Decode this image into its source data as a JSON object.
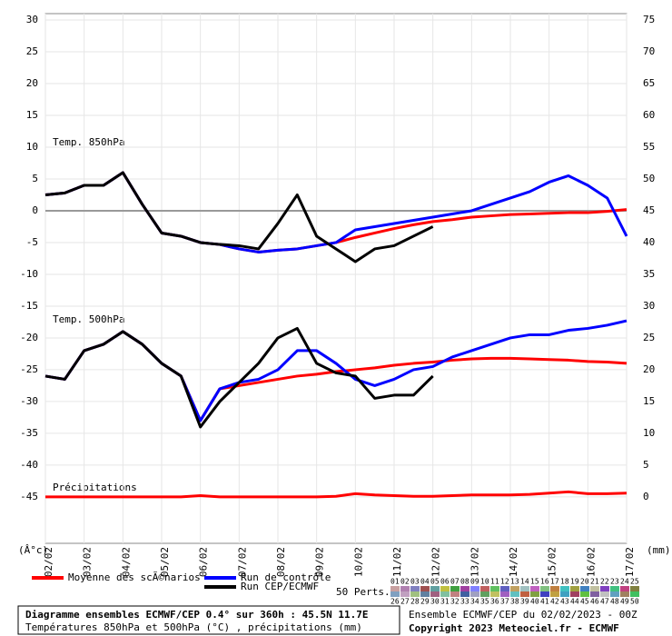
{
  "chart_data": {
    "type": "line",
    "labels": {
      "t850": "Temp. 850hPa",
      "t500": "Temp. 500hPa",
      "precip": "Précipitations",
      "y_unit": "(Â°c)",
      "y2_unit": "(mm)",
      "perts": "50 Perts."
    },
    "x": [
      0,
      12,
      24,
      36,
      48,
      60,
      72,
      84,
      96,
      108,
      120,
      132,
      144,
      156,
      168,
      180,
      192,
      204,
      216,
      228,
      240,
      252,
      264,
      276,
      288,
      300,
      312,
      324,
      336,
      348,
      360
    ],
    "xlim": [
      0,
      360
    ],
    "xticks": [
      {
        "value": 0,
        "label": "02/02"
      },
      {
        "value": 24,
        "label": "03/02"
      },
      {
        "value": 48,
        "label": "04/02"
      },
      {
        "value": 72,
        "label": "05/02"
      },
      {
        "value": 96,
        "label": "06/02"
      },
      {
        "value": 120,
        "label": "07/02"
      },
      {
        "value": 144,
        "label": "08/02"
      },
      {
        "value": 168,
        "label": "09/02"
      },
      {
        "value": 192,
        "label": "10/02"
      },
      {
        "value": 216,
        "label": "11/02"
      },
      {
        "value": 240,
        "label": "12/02"
      },
      {
        "value": 264,
        "label": "13/02"
      },
      {
        "value": 288,
        "label": "14/02"
      },
      {
        "value": 312,
        "label": "15/02"
      },
      {
        "value": 336,
        "label": "16/02"
      },
      {
        "value": 360,
        "label": "17/02"
      }
    ],
    "ylim": [
      -52.3,
      31
    ],
    "yticks": [
      30,
      25,
      20,
      15,
      10,
      5,
      0,
      -5,
      -10,
      -15,
      -20,
      -25,
      -30,
      -35,
      -40,
      -45
    ],
    "y2lim": [
      -7.3,
      76
    ],
    "y2ticks": [
      75,
      70,
      65,
      60,
      55,
      50,
      45,
      40,
      35,
      30,
      25,
      20,
      15,
      10,
      5,
      0
    ],
    "zero_line": 0,
    "grid": true,
    "series": [
      {
        "color": "#ff0000",
        "values": [
          2.5,
          2.8,
          4,
          4,
          6,
          1,
          -3.5,
          -4,
          -5,
          -5.3,
          -6,
          -6.5,
          -6.2,
          -6,
          -5.5,
          -5,
          -4.2,
          -3.5,
          -2.8,
          -2.2,
          -1.7,
          -1.4,
          -1,
          -0.8,
          -0.6,
          -0.5,
          -0.4,
          -0.3,
          -0.3,
          -0.1,
          0.2
        ]
      },
      {
        "color": "#0000ff",
        "values": [
          2.5,
          2.8,
          4,
          4,
          6,
          1,
          -3.5,
          -4,
          -5,
          -5.3,
          -6,
          -6.5,
          -6.2,
          -6,
          -5.5,
          -5,
          -3,
          -2.5,
          -2,
          -1.5,
          -1,
          -0.5,
          0,
          1,
          2,
          3,
          4.5,
          5.5,
          4,
          2,
          -4
        ]
      },
      {
        "color": "#000000",
        "values": [
          2.5,
          2.8,
          4,
          4,
          6,
          1,
          -3.5,
          -4,
          -5,
          -5.3,
          -5.5,
          -6,
          -2,
          2.5,
          -4,
          -6,
          -8,
          -6,
          -5.5,
          -4,
          -2.5,
          null,
          null,
          null,
          null,
          null,
          null,
          null,
          null,
          null,
          null
        ]
      },
      {
        "color": "#ff0000",
        "values": [
          -26,
          -26.5,
          -22,
          -21,
          -19,
          -21,
          -24,
          -26,
          -33,
          -28,
          -27.5,
          -27,
          -26.5,
          -26,
          -25.7,
          -25.3,
          -25,
          -24.7,
          -24.3,
          -24,
          -23.8,
          -23.5,
          -23.3,
          -23.2,
          -23.2,
          -23.3,
          -23.4,
          -23.5,
          -23.7,
          -23.8,
          -24
        ]
      },
      {
        "color": "#0000ff",
        "values": [
          -26,
          -26.5,
          -22,
          -21,
          -19,
          -21,
          -24,
          -26,
          -33,
          -28,
          -27,
          -26.5,
          -25,
          -22,
          -22,
          -24,
          -26.5,
          -27.5,
          -26.5,
          -25,
          -24.5,
          -23,
          -22,
          -21,
          -20,
          -19.5,
          -19.5,
          -18.8,
          -18.5,
          -18,
          -17.3
        ]
      },
      {
        "color": "#000000",
        "values": [
          -26,
          -26.5,
          -22,
          -21,
          -19,
          -21,
          -24,
          -26,
          -34,
          -30,
          -27,
          -24,
          -20,
          -18.5,
          -24,
          -25.5,
          -26,
          -29.5,
          -29,
          -29,
          -26,
          null,
          null,
          null,
          null,
          null,
          null,
          null,
          null,
          null,
          null
        ]
      },
      {
        "color": "#ff0000",
        "axis": "y2",
        "values": [
          0,
          0,
          0,
          0,
          0,
          0,
          0,
          0,
          0.2,
          0,
          0,
          0,
          0,
          0,
          0,
          0.1,
          0.5,
          0.3,
          0.2,
          0.1,
          0.1,
          0.2,
          0.3,
          0.3,
          0.3,
          0.4,
          0.6,
          0.8,
          0.5,
          0.5,
          0.6
        ]
      }
    ],
    "legend": [
      {
        "label": "Moyenne des scÃ©narios",
        "color": "#ff0000"
      },
      {
        "label": "Run de contrôle",
        "color": "#0000ff"
      },
      {
        "label": "Run CEP/ECMWF",
        "color": "#000000"
      }
    ],
    "perturbation_labels": [
      "01",
      "02",
      "03",
      "04",
      "05",
      "06",
      "07",
      "08",
      "09",
      "10",
      "11",
      "12",
      "13",
      "14",
      "15",
      "16",
      "17",
      "18",
      "19",
      "20",
      "21",
      "22",
      "23",
      "24",
      "25",
      "26",
      "27",
      "28",
      "29",
      "30",
      "31",
      "32",
      "33",
      "34",
      "35",
      "36",
      "37",
      "38",
      "39",
      "40",
      "41",
      "42",
      "43",
      "44",
      "45",
      "46",
      "47",
      "48",
      "49",
      "50"
    ],
    "perturbation_colors": [
      "#c8a0a0",
      "#b080b0",
      "#8080c0",
      "#a05050",
      "#60a0a0",
      "#c0c040",
      "#40a040",
      "#a040a0",
      "#8080ff",
      "#c06060",
      "#60c060",
      "#6060c0",
      "#c0a060",
      "#a0c0c0",
      "#c060c0",
      "#80c080",
      "#c08040",
      "#40c0c0",
      "#a0a040",
      "#4080c0",
      "#c0c0a0",
      "#8040c0",
      "#40c080",
      "#c04080",
      "#808040",
      "#80a0c0",
      "#c0a0c0",
      "#a0c080",
      "#6080a0",
      "#a06080",
      "#80c0a0",
      "#c08080",
      "#4060a0",
      "#a0a0c0",
      "#60a060",
      "#c0c060",
      "#a060c0",
      "#60c0c0",
      "#c06040",
      "#80a040",
      "#4040c0",
      "#c0a040",
      "#40a0c0",
      "#a04060",
      "#60c040",
      "#8060a0",
      "#c0c0c0",
      "#60a0c0",
      "#a08060",
      "#40c060"
    ],
    "footer": {
      "title": "Diagramme ensembles ECMWF/CEP 0.4° sur 360h : 45.5N 11.7E",
      "subtitle": "Températures 850hPa et 500hPa (°C) , précipitations (mm)",
      "run": "Ensemble ECMWF/CEP du 02/02/2023 - 00Z",
      "copyright": "Copyright 2023 Meteociel.fr - ECMWF"
    }
  }
}
